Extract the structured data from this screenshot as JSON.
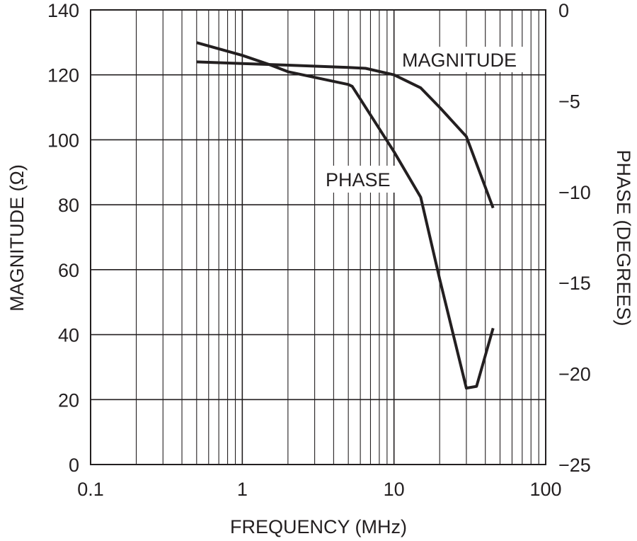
{
  "chart_data": {
    "type": "line",
    "title": "",
    "xlabel": "FREQUENCY (MHz)",
    "ylabel_left": "MAGNITUDE (Ω)",
    "ylabel_right": "PHASE (DEGREES)",
    "x_scale": "log",
    "xlim": [
      0.1,
      100
    ],
    "ylim_left": [
      0,
      140
    ],
    "ylim_right": [
      -25,
      0
    ],
    "grid": true,
    "x_ticks": [
      "0.1",
      "1",
      "10",
      "100"
    ],
    "y_ticks_left": [
      "0",
      "20",
      "40",
      "60",
      "80",
      "100",
      "120",
      "140"
    ],
    "y_ticks_right": [
      "−25",
      "−20",
      "−15",
      "−10",
      "−5",
      "0"
    ],
    "annotations": [
      "MAGNITUDE",
      "PHASE"
    ],
    "series": [
      {
        "axis": "left",
        "x": [
          0.5,
          1.0,
          2.0,
          5.0,
          6.5,
          10,
          15,
          20,
          30,
          45
        ],
        "y": [
          124,
          123.5,
          123,
          122.3,
          122,
          120,
          116,
          110,
          101,
          79
        ]
      },
      {
        "axis": "right",
        "x": [
          0.5,
          1.0,
          1.5,
          2.0,
          5.0,
          5.3,
          10,
          15,
          20,
          30,
          35,
          45
        ],
        "y": [
          -1.8,
          -2.5,
          -3.0,
          -3.4,
          -4.1,
          -4.2,
          -7.8,
          -10.3,
          -14.8,
          -20.8,
          -20.7,
          -17.5
        ]
      }
    ]
  }
}
